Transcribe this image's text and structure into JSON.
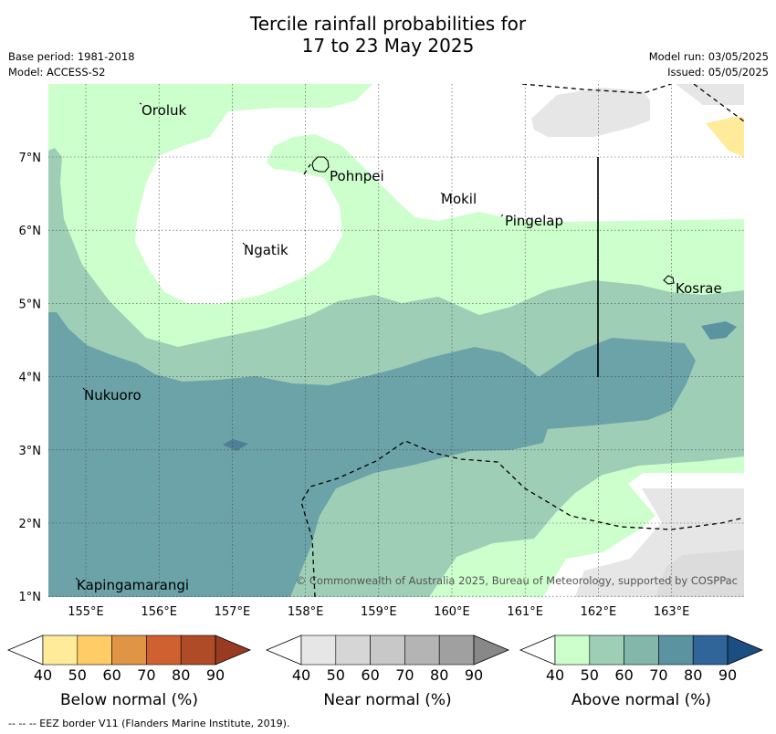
{
  "header": {
    "title_line1": "Tercile rainfall probabilities for",
    "title_line2": "17 to 23 May 2025",
    "base_period": "Base period: 1981-2018",
    "model": "Model: ACCESS-S2",
    "model_run": "Model run: 03/05/2025",
    "issued": "Issued: 05/05/2025"
  },
  "map": {
    "x_ticks": [
      "155°E",
      "156°E",
      "157°E",
      "158°E",
      "159°E",
      "160°E",
      "161°E",
      "162°E",
      "163°E"
    ],
    "y_ticks": [
      "7°N",
      "6°N",
      "5°N",
      "4°N",
      "3°N",
      "2°N",
      "1°N"
    ],
    "places": {
      "oroluk": "Oroluk",
      "pohnpei": "Pohnpei",
      "mokil": "Mokil",
      "pingelap": "Pingelap",
      "ngatik": "Ngatik",
      "kosrae": "Kosrae",
      "nukuoro": "Nukuoro",
      "kapingamarangi": "Kapingamarangi"
    },
    "copyright": "© Commonwealth of Australia 2025, Bureau of Meteorology, supported by COSPPac"
  },
  "legend": {
    "ticks": [
      "40",
      "50",
      "60",
      "70",
      "80",
      "90"
    ],
    "below": {
      "label": "Below normal (%)",
      "colors": [
        "#ffffff",
        "#ffeb99",
        "#ffcc66",
        "#e09545",
        "#cf6130",
        "#b04b28",
        "#993b22"
      ]
    },
    "near": {
      "label": "Near normal (%)",
      "colors": [
        "#ffffff",
        "#e6e6e6",
        "#d6d6d6",
        "#c8c8c8",
        "#b4b4b4",
        "#a0a0a0",
        "#888888"
      ]
    },
    "above": {
      "label": "Above normal (%)",
      "colors": [
        "#ffffff",
        "#ccffcc",
        "#9ecfb6",
        "#83b7aa",
        "#5b93a0",
        "#2f6598",
        "#1b4f82"
      ]
    }
  },
  "footnote": "--  --  -- EEZ border V11 (Flanders Marine Institute, 2019)."
}
